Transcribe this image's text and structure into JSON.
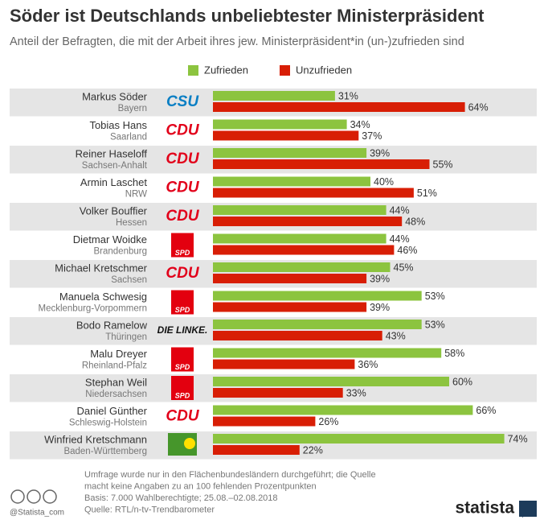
{
  "chart_data": {
    "type": "bar",
    "orientation": "horizontal",
    "title": "Söder ist Deutschlands unbeliebtester Ministerpräsident",
    "subtitle": "Anteil der Befragten, die mit der Arbeit ihres jew. Ministerpräsident*in (un-)zufrieden sind",
    "categories": [
      "Markus Söder",
      "Tobias Hans",
      "Reiner Haseloff",
      "Armin Laschet",
      "Volker Bouffier",
      "Dietmar Woidke",
      "Michael Kretschmer",
      "Manuela Schwesig",
      "Bodo Ramelow",
      "Malu Dreyer",
      "Stephan Weil",
      "Daniel Günther",
      "Winfried Kretschmann"
    ],
    "regions": [
      "Bayern",
      "Saarland",
      "Sachsen-Anhalt",
      "NRW",
      "Hessen",
      "Brandenburg",
      "Sachsen",
      "Mecklenburg-Vorpommern",
      "Thüringen",
      "Rheinland-Pfalz",
      "Niedersachsen",
      "Schleswig-Holstein",
      "Baden-Württemberg"
    ],
    "parties": [
      {
        "name": "CSU",
        "color": "#0a7fc4"
      },
      {
        "name": "CDU",
        "color": "#e2001a"
      },
      {
        "name": "CDU",
        "color": "#e2001a"
      },
      {
        "name": "CDU",
        "color": "#e2001a"
      },
      {
        "name": "CDU",
        "color": "#e2001a"
      },
      {
        "name": "SPD",
        "color": "#ffffff",
        "background": "#e3000f"
      },
      {
        "name": "CDU",
        "color": "#e2001a"
      },
      {
        "name": "SPD",
        "color": "#ffffff",
        "background": "#e3000f"
      },
      {
        "name": "DIE LINKE.",
        "color": "#111111"
      },
      {
        "name": "SPD",
        "color": "#ffffff",
        "background": "#e3000f"
      },
      {
        "name": "SPD",
        "color": "#ffffff",
        "background": "#e3000f"
      },
      {
        "name": "CDU",
        "color": "#e2001a"
      },
      {
        "color": "#ffe000",
        "background": "#46962b"
      }
    ],
    "series": [
      {
        "name": "Zufrieden",
        "color": "#8cc43f",
        "values": [
          31,
          34,
          39,
          40,
          44,
          44,
          45,
          53,
          53,
          58,
          60,
          66,
          74
        ],
        "value_labels": [
          "31%",
          "34%",
          "39%",
          "40%",
          "44%",
          "44%",
          "45%",
          "53%",
          "53%",
          "58%",
          "60%",
          "66%",
          "74%"
        ]
      },
      {
        "name": "Unzufrieden",
        "color": "#d81e05",
        "values": [
          64,
          37,
          55,
          51,
          48,
          46,
          39,
          39,
          43,
          36,
          33,
          26,
          22
        ],
        "value_labels": [
          "64%",
          "37%",
          "55%",
          "51%",
          "48%",
          "46%",
          "39%",
          "39%",
          "43%",
          "36%",
          "33%",
          "26%",
          "22%"
        ]
      }
    ],
    "notes": [
      "Umfrage wurde nur in den Flächenbundesländern durchgeführt; die Quelle",
      "macht keine Angaben zu an 100 fehlenden Prozentpunkten",
      "Basis: 7.000 Wahlberechtigte; 25.08.–02.08.2018",
      "Quelle: RTL/n-tv-Trendbarometer"
    ],
    "credit": "@Statista_com",
    "brand": "statista"
  }
}
